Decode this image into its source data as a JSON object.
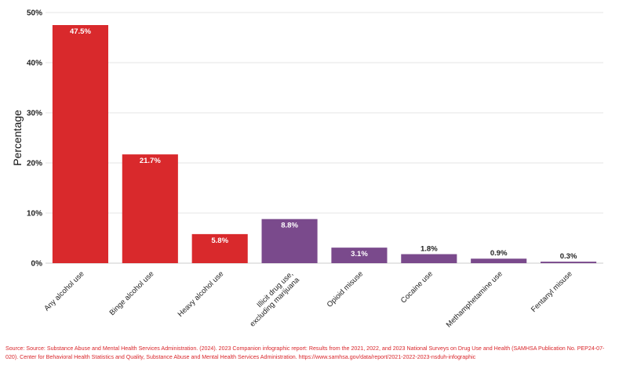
{
  "chart_data": {
    "type": "bar",
    "title": "",
    "xlabel": "",
    "ylabel": "Percentage",
    "ylim": [
      0,
      50
    ],
    "yticks": [
      "0%",
      "10%",
      "20%",
      "30%",
      "40%",
      "50%"
    ],
    "categories": [
      "Any alcohol use",
      "Binge alcohol use",
      "Heavy alcohol use",
      "Illicit drug use, excluding marijuana",
      "Opioid misuse",
      "Cocaine use",
      "Methamphetamine use",
      "Fentanyl misuse"
    ],
    "values": [
      47.5,
      21.7,
      5.8,
      8.8,
      3.1,
      1.8,
      0.9,
      0.3
    ],
    "value_labels": [
      "47.5%",
      "21.7%",
      "5.8%",
      "8.8%",
      "3.1%",
      "1.8%",
      "0.9%",
      "0.3%"
    ],
    "colors": [
      "#d9292c",
      "#d9292c",
      "#d9292c",
      "#7a4a8c",
      "#7a4a8c",
      "#7a4a8c",
      "#7a4a8c",
      "#7a4a8c"
    ],
    "grid": true,
    "legend": "none"
  },
  "source_note": "Source: Source: Substance Abuse and Mental Health Services Administration. (2024). 2023 Companion infographic report: Results from the 2021, 2022, and 2023 National Surveys on Drug Use and Health (SAMHSA Publication No. PEP24-07-020). Center for Behavioral Health Statistics and Quality, Substance Abuse and Mental Health Services Administration. https://www.samhsa.gov/data/report/2021-2022-2023-nsduh-infographic"
}
